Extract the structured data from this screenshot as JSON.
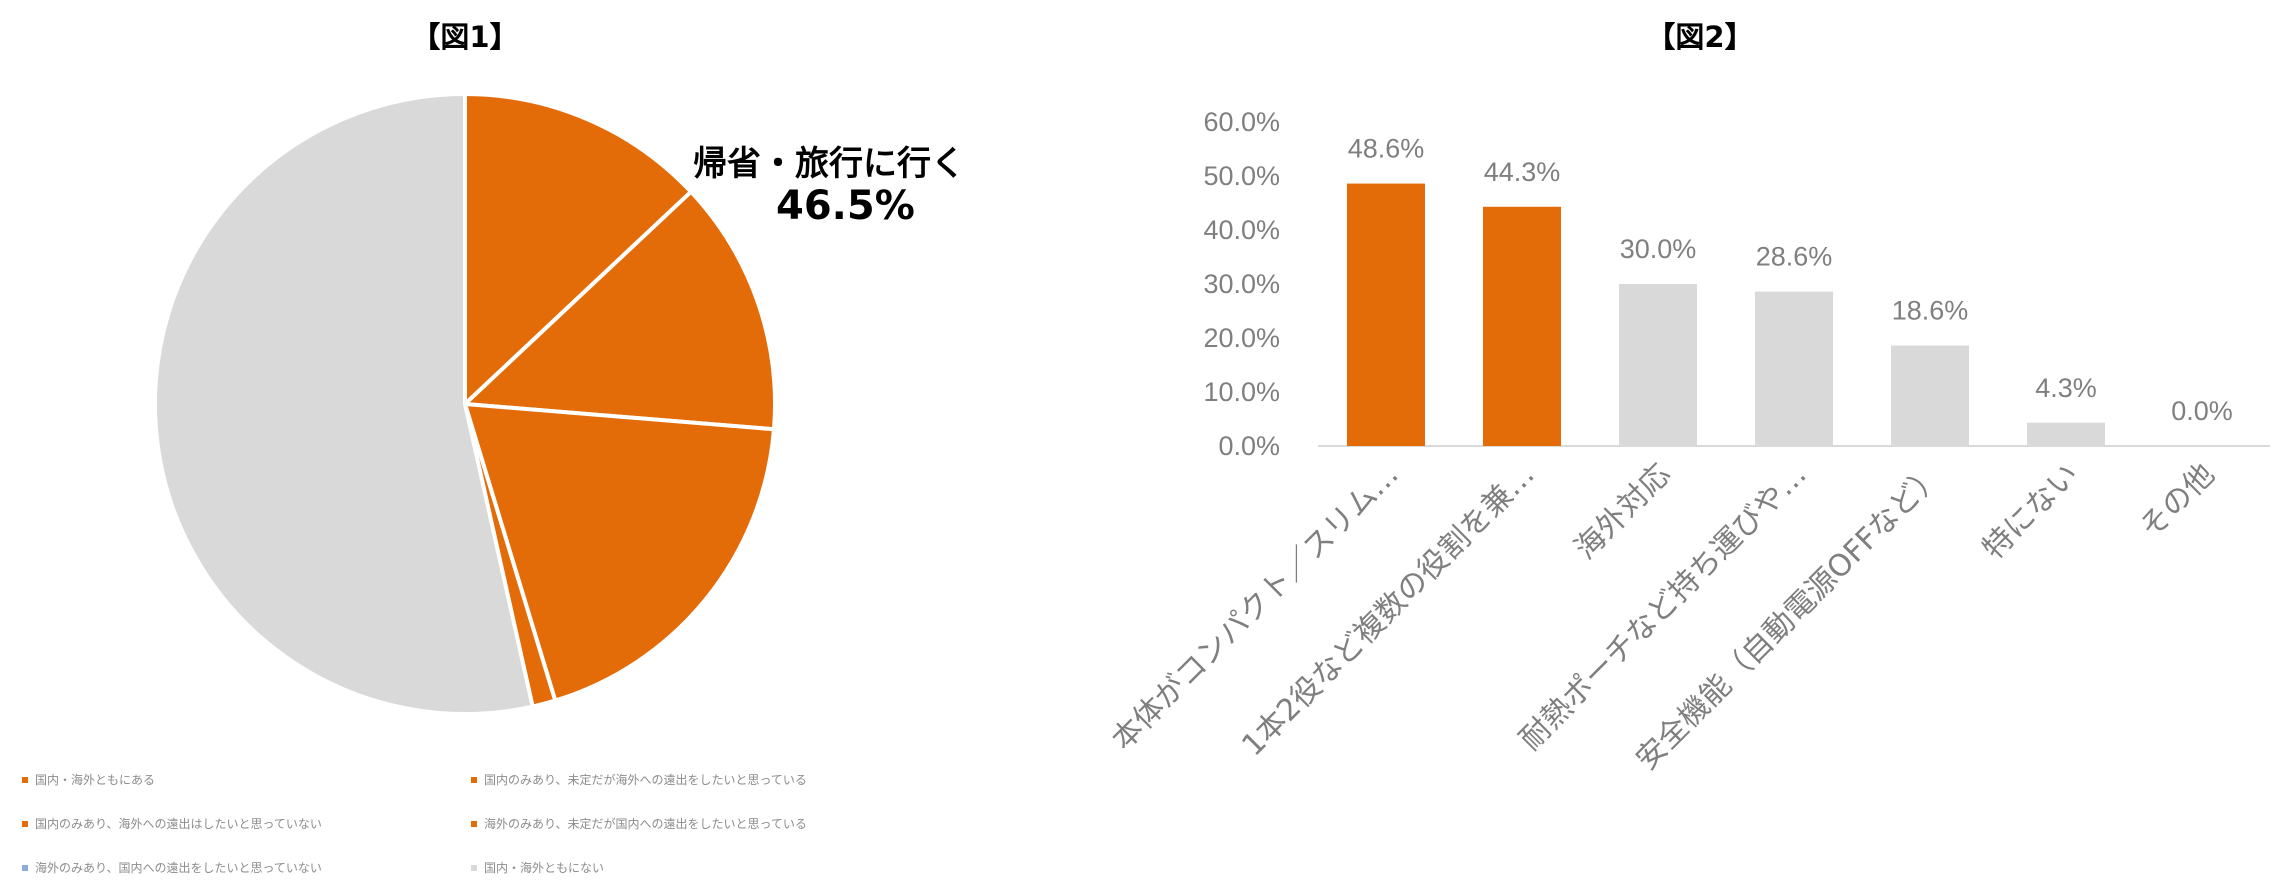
{
  "figure1": {
    "title": "【図1】",
    "callout_label": "帰省・旅行に行く",
    "callout_value": "46.5%",
    "legend": [
      {
        "label": "国内・海外ともにある",
        "color": "#e36c09"
      },
      {
        "label": "国内のみあり、未定だが海外への遠出をしたいと思っている",
        "color": "#e36c09"
      },
      {
        "label": "国内のみあり、海外への遠出はしたいと思っていない",
        "color": "#e36c09"
      },
      {
        "label": "海外のみあり、未定だが国内への遠出をしたいと思っている",
        "color": "#e36c09"
      },
      {
        "label": "海外のみあり、国内への遠出をしたいと思っていない",
        "color": "#8eaadb"
      },
      {
        "label": "国内・海外ともにない",
        "color": "#d9d9d9"
      }
    ]
  },
  "figure2": {
    "title": "【図2】"
  },
  "chart_data": [
    {
      "type": "pie",
      "title": "【図1】",
      "slices": [
        {
          "label": "国内・海外ともにある",
          "value": 13.0,
          "color": "#e36c09"
        },
        {
          "label": "国内のみあり、未定だが海外への遠出をしたいと思っている",
          "value": 13.3,
          "color": "#e36c09"
        },
        {
          "label": "国内のみあり、海外への遠出はしたいと思っていない",
          "value": 19.0,
          "color": "#e36c09"
        },
        {
          "label": "海外のみあり、未定だが国内への遠出をしたいと思っている",
          "value": 1.2,
          "color": "#e36c09"
        },
        {
          "label": "海外のみあり、国内への遠出をしたいと思っていない",
          "value": 0.0,
          "color": "#8eaadb"
        },
        {
          "label": "国内・海外ともにない",
          "value": 53.5,
          "color": "#d9d9d9"
        }
      ],
      "annotation": {
        "label": "帰省・旅行に行く",
        "value": "46.5%"
      },
      "legend_position": "bottom"
    },
    {
      "type": "bar",
      "title": "【図2】",
      "categories": [
        "本体がコンパクト／スリム…",
        "1本2役など複数の役割を兼…",
        "海外対応",
        "耐熱ポーチなど持ち運びや…",
        "安全機能（自動電源OFFなど）",
        "特にない",
        "その他"
      ],
      "values": [
        48.6,
        44.3,
        30.0,
        28.6,
        18.6,
        4.3,
        0.0
      ],
      "data_labels": [
        "48.6%",
        "44.3%",
        "30.0%",
        "28.6%",
        "18.6%",
        "4.3%",
        "0.0%"
      ],
      "colors": [
        "#e36c09",
        "#e36c09",
        "#d9d9d9",
        "#d9d9d9",
        "#d9d9d9",
        "#d9d9d9",
        "#d9d9d9"
      ],
      "yticks": [
        "0.0%",
        "10.0%",
        "20.0%",
        "30.0%",
        "40.0%",
        "50.0%",
        "60.0%"
      ],
      "ylim": [
        0,
        60
      ],
      "grid": false
    }
  ]
}
